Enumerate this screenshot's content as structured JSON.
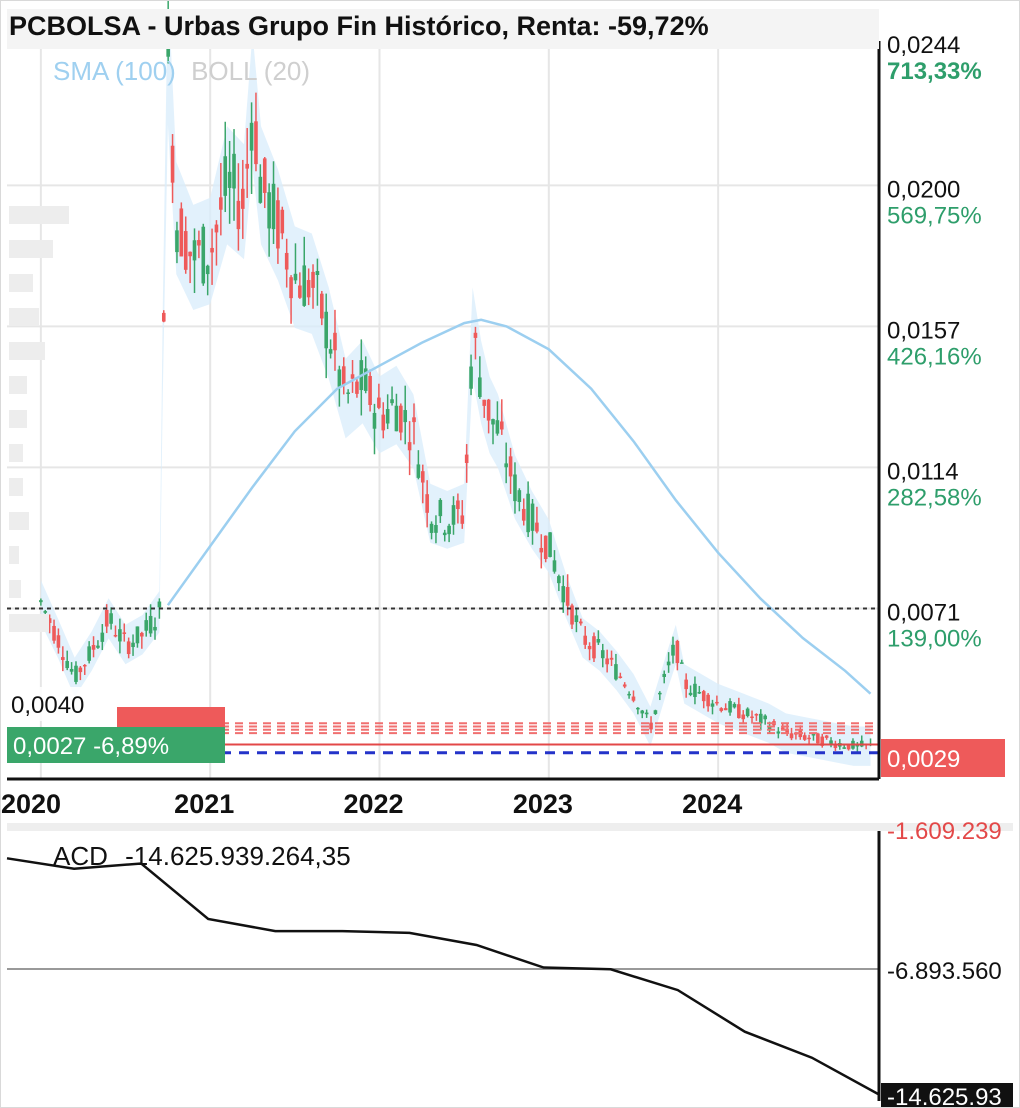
{
  "chart_data": [
    {
      "type": "candlestick",
      "title": "PCBOLSA - Urbas Grupo Fin Histórico, Renta: -59,72%",
      "indicators": [
        "SMA (100)",
        "BOLL (20)"
      ],
      "x_tick_labels": [
        "2020",
        "2021",
        "2022",
        "2023",
        "2024"
      ],
      "y_ticks": [
        {
          "price": "0,0244",
          "pct": "713,33%",
          "value": 0.0244
        },
        {
          "price": "0,0200",
          "pct": "569,75%",
          "value": 0.02
        },
        {
          "price": "0,0157",
          "pct": "426,16%",
          "value": 0.0157
        },
        {
          "price": "0,0114",
          "pct": "282,58%",
          "value": 0.0114
        },
        {
          "price": "0,0071",
          "pct": "139,00%",
          "value": 0.0071
        }
      ],
      "ylim": [
        0.0019,
        0.0244
      ],
      "reference_line": 0.0071,
      "last_price": {
        "label": "0,0029",
        "value": 0.0029
      },
      "cursor_tag": {
        "price": "0,0027",
        "change": "-6,89%"
      },
      "low_label": "0,0040",
      "close_series": {
        "x": [
          2020.0,
          2020.1,
          2020.2,
          2020.3,
          2020.4,
          2020.5,
          2020.6,
          2020.7,
          2020.72,
          2020.75,
          2020.8,
          2020.9,
          2021.0,
          2021.1,
          2021.2,
          2021.25,
          2021.3,
          2021.4,
          2021.5,
          2021.6,
          2021.7,
          2021.8,
          2021.9,
          2022.0,
          2022.1,
          2022.2,
          2022.3,
          2022.4,
          2022.5,
          2022.55,
          2022.6,
          2022.65,
          2022.7,
          2022.8,
          2022.9,
          2023.0,
          2023.1,
          2023.2,
          2023.3,
          2023.4,
          2023.5,
          2023.6,
          2023.7,
          2023.75,
          2023.8,
          2023.9,
          2024.0,
          2024.1,
          2024.2,
          2024.3,
          2024.4,
          2024.5,
          2024.6,
          2024.7,
          2024.8,
          2024.9
        ],
        "y": [
          0.0073,
          0.0062,
          0.005,
          0.0058,
          0.0068,
          0.006,
          0.0063,
          0.007,
          0.015,
          0.024,
          0.019,
          0.0178,
          0.018,
          0.02,
          0.0195,
          0.0226,
          0.02,
          0.0188,
          0.0172,
          0.017,
          0.0155,
          0.0135,
          0.014,
          0.013,
          0.0133,
          0.0125,
          0.01,
          0.0098,
          0.01,
          0.0155,
          0.014,
          0.013,
          0.0125,
          0.0108,
          0.0098,
          0.009,
          0.0075,
          0.0062,
          0.0058,
          0.0052,
          0.0045,
          0.0035,
          0.0052,
          0.006,
          0.0048,
          0.0045,
          0.0042,
          0.004,
          0.0038,
          0.0036,
          0.0033,
          0.0032,
          0.0031,
          0.003,
          0.0029,
          0.0029
        ]
      },
      "sma_series": {
        "x": [
          2020.75,
          2021.0,
          2021.25,
          2021.5,
          2021.75,
          2022.0,
          2022.25,
          2022.5,
          2022.6,
          2022.75,
          2023.0,
          2023.25,
          2023.5,
          2023.75,
          2024.0,
          2024.25,
          2024.5,
          2024.75,
          2024.9
        ],
        "y": [
          0.0072,
          0.009,
          0.0108,
          0.0125,
          0.0138,
          0.0145,
          0.0152,
          0.0158,
          0.0159,
          0.0157,
          0.015,
          0.0138,
          0.0122,
          0.0104,
          0.0088,
          0.0074,
          0.0062,
          0.0052,
          0.0045
        ]
      }
    },
    {
      "type": "line",
      "title": "ACD",
      "legend_value": "-14.625.939.264,35",
      "y_tick_labels": [
        "-6.893.560",
        "-14.625.93",
        "-1.609.239"
      ],
      "values_approx": [
        -1000000000,
        -1600000000,
        -1300000000,
        -4500000000,
        -5200000000,
        -5200000000,
        -5300000000,
        -6000000000,
        -7300000000,
        -7400000000,
        -8600000000,
        -11000000000,
        -12500000000,
        -14625939264
      ]
    }
  ]
}
